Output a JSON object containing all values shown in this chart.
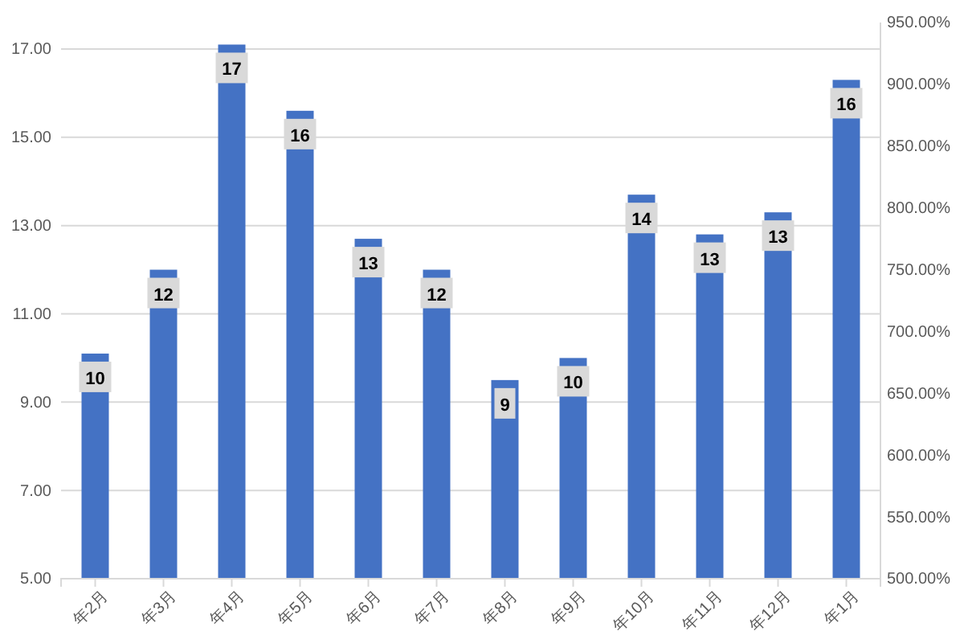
{
  "chart_data": {
    "type": "bar",
    "categories": [
      "年2月",
      "年3月",
      "年4月",
      "年5月",
      "年6月",
      "年7月",
      "年8月",
      "年9月",
      "年10月",
      "年11月",
      "年12月",
      "年1月"
    ],
    "values": [
      10.1,
      12.0,
      17.1,
      15.6,
      12.7,
      12.0,
      9.5,
      10.0,
      13.7,
      12.8,
      13.3,
      16.3
    ],
    "value_labels": [
      "10",
      "12",
      "17",
      "16",
      "13",
      "12",
      "9",
      "10",
      "14",
      "13",
      "13",
      "16"
    ],
    "color": "#4472c4",
    "ylim": [
      5,
      17.6
    ],
    "yticks": [
      {
        "value": 5,
        "label": "5.00"
      },
      {
        "value": 7,
        "label": "7.00"
      },
      {
        "value": 9,
        "label": "9.00"
      },
      {
        "value": 11,
        "label": "11.00"
      },
      {
        "value": 13,
        "label": "13.00"
      },
      {
        "value": 15,
        "label": "15.00"
      },
      {
        "value": 17,
        "label": "17.00"
      }
    ],
    "y2lim": [
      500,
      950
    ],
    "y2ticks": [
      {
        "value": 500,
        "label": "500.00%"
      },
      {
        "value": 550,
        "label": "550.00%"
      },
      {
        "value": 600,
        "label": "600.00%"
      },
      {
        "value": 650,
        "label": "650.00%"
      },
      {
        "value": 700,
        "label": "700.00%"
      },
      {
        "value": 750,
        "label": "750.00%"
      },
      {
        "value": 800,
        "label": "800.00%"
      },
      {
        "value": 850,
        "label": "850.00%"
      },
      {
        "value": 900,
        "label": "900.00%"
      },
      {
        "value": 950,
        "label": "950.00%"
      }
    ],
    "grid": "y"
  }
}
